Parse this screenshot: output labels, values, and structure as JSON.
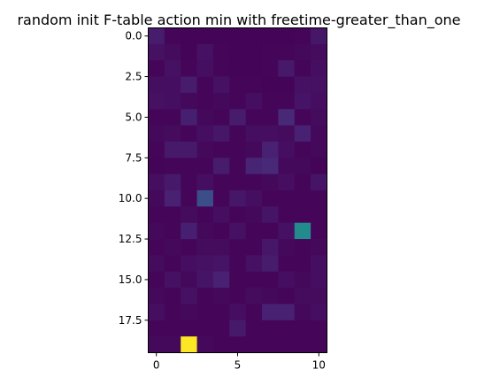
{
  "chart_data": {
    "type": "heatmap",
    "title": "random init F-table action min with freetime-greater_than_one",
    "xlabel": "",
    "ylabel": "",
    "n_cols": 11,
    "n_rows": 20,
    "colormap": "viridis",
    "vmin": 0,
    "vmax": 1,
    "x_ticks": [
      0,
      5,
      10
    ],
    "x_tick_labels": [
      "0",
      "5",
      "10"
    ],
    "y_ticks": [
      0,
      2.5,
      5,
      7.5,
      10,
      12.5,
      15,
      17.5
    ],
    "y_tick_labels": [
      "0.0",
      "2.5",
      "5.0",
      "7.5",
      "10.0",
      "12.5",
      "15.0",
      "17.5"
    ],
    "grid": false,
    "values": [
      [
        0.1,
        0.02,
        0.01,
        0.01,
        0.01,
        0.01,
        0.01,
        0.01,
        0.01,
        0.02,
        0.08
      ],
      [
        0.06,
        0.04,
        0.01,
        0.06,
        0.02,
        0.01,
        0.01,
        0.02,
        0.02,
        0.03,
        0.04
      ],
      [
        0.02,
        0.06,
        0.02,
        0.05,
        0.02,
        0.01,
        0.01,
        0.02,
        0.09,
        0.02,
        0.05
      ],
      [
        0.05,
        0.05,
        0.1,
        0.02,
        0.06,
        0.02,
        0.02,
        0.01,
        0.01,
        0.06,
        0.06
      ],
      [
        0.06,
        0.05,
        0.03,
        0.02,
        0.03,
        0.02,
        0.05,
        0.02,
        0.02,
        0.07,
        0.05
      ],
      [
        0.02,
        0.02,
        0.11,
        0.03,
        0.02,
        0.1,
        0.02,
        0.02,
        0.15,
        0.02,
        0.04
      ],
      [
        0.03,
        0.04,
        0.02,
        0.05,
        0.08,
        0.02,
        0.05,
        0.05,
        0.04,
        0.12,
        0.03
      ],
      [
        0.02,
        0.09,
        0.09,
        0.03,
        0.02,
        0.02,
        0.03,
        0.12,
        0.05,
        0.02,
        0.03
      ],
      [
        0.01,
        0.02,
        0.02,
        0.02,
        0.1,
        0.02,
        0.13,
        0.15,
        0.03,
        0.03,
        0.01
      ],
      [
        0.05,
        0.09,
        0.02,
        0.05,
        0.02,
        0.02,
        0.02,
        0.03,
        0.05,
        0.02,
        0.07
      ],
      [
        0.03,
        0.12,
        0.02,
        0.3,
        0.02,
        0.08,
        0.05,
        0.02,
        0.02,
        0.02,
        0.02
      ],
      [
        0.02,
        0.02,
        0.04,
        0.02,
        0.05,
        0.02,
        0.03,
        0.07,
        0.02,
        0.02,
        0.02
      ],
      [
        0.03,
        0.02,
        0.11,
        0.03,
        0.02,
        0.06,
        0.02,
        0.02,
        0.06,
        0.6,
        0.02
      ],
      [
        0.02,
        0.03,
        0.02,
        0.04,
        0.04,
        0.02,
        0.02,
        0.08,
        0.03,
        0.02,
        0.03
      ],
      [
        0.04,
        0.02,
        0.05,
        0.06,
        0.07,
        0.02,
        0.06,
        0.1,
        0.02,
        0.02,
        0.05
      ],
      [
        0.02,
        0.06,
        0.03,
        0.07,
        0.12,
        0.02,
        0.02,
        0.02,
        0.05,
        0.03,
        0.05
      ],
      [
        0.03,
        0.02,
        0.06,
        0.02,
        0.03,
        0.02,
        0.04,
        0.03,
        0.02,
        0.04,
        0.04
      ],
      [
        0.05,
        0.02,
        0.03,
        0.02,
        0.02,
        0.05,
        0.02,
        0.12,
        0.12,
        0.03,
        0.05
      ],
      [
        0.02,
        0.02,
        0.02,
        0.02,
        0.02,
        0.09,
        0.02,
        0.02,
        0.02,
        0.02,
        0.02
      ],
      [
        0.03,
        0.03,
        1.0,
        0.03,
        0.02,
        0.02,
        0.02,
        0.02,
        0.02,
        0.02,
        0.02
      ]
    ]
  }
}
